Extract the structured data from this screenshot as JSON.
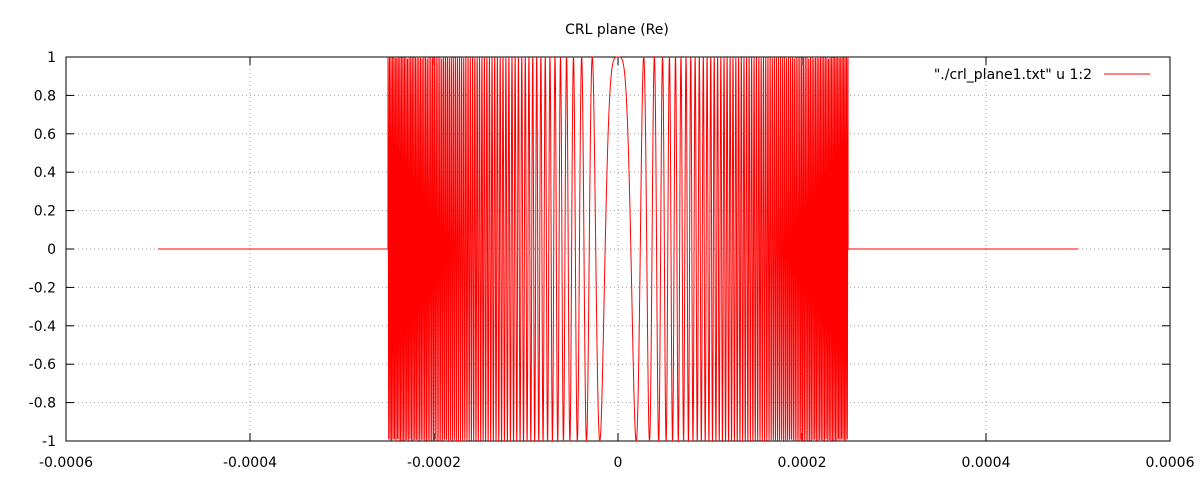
{
  "chart_data": {
    "type": "line",
    "title": "CRL plane (Re)",
    "xlabel": "",
    "ylabel": "",
    "xlim": [
      -0.0006,
      0.0006
    ],
    "ylim": [
      -1,
      1
    ],
    "xticks": [
      -0.0006,
      -0.0004,
      -0.0002,
      0,
      0.0002,
      0.0004,
      0.0006
    ],
    "xtick_labels": [
      "-0.0006",
      "-0.0004",
      "-0.0002",
      "0",
      "0.0002",
      "0.0004",
      "0.0006"
    ],
    "yticks": [
      -1,
      -0.8,
      -0.6,
      -0.4,
      -0.2,
      0,
      0.2,
      0.4,
      0.6,
      0.8,
      1
    ],
    "ytick_labels": [
      "-1",
      "-0.8",
      "-0.6",
      "-0.4",
      "-0.2",
      "0",
      "0.2",
      "0.4",
      "0.6",
      "0.8",
      "1"
    ],
    "grid": true,
    "legend_position": "top-right",
    "series": [
      {
        "name": "\"./crl_plane1.txt\" u 1:2",
        "color": "#ff0000",
        "x_range": [
          -0.0005,
          0.0005
        ],
        "aperture": [
          -0.00025,
          0.00025
        ],
        "zero_outside_aperture": true,
        "description_shape": "cos(k*x^2) chirp, zero outside aperture"
      }
    ]
  }
}
